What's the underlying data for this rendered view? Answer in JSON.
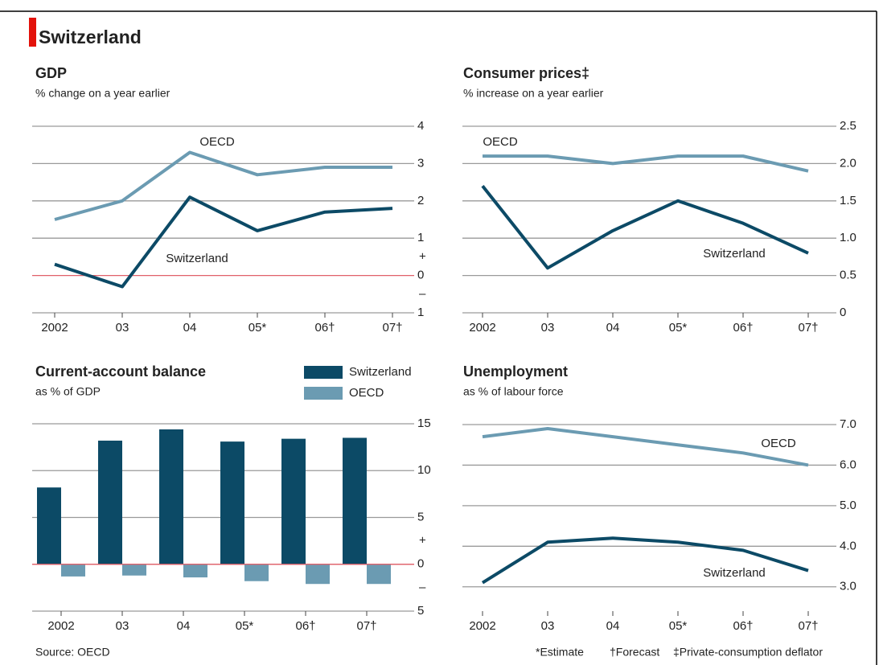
{
  "header": {
    "title": "Switzerland"
  },
  "footer": {
    "source": "Source: OECD",
    "notes": [
      "*Estimate",
      "†Forecast",
      "‡Private-consumption deflator"
    ]
  },
  "chart_data": [
    {
      "type": "line",
      "title": "GDP",
      "subtitle": "% change on a year earlier",
      "categories": [
        "2002",
        "03",
        "04",
        "05*",
        "06†",
        "07†"
      ],
      "series": [
        {
          "name": "OECD",
          "color": "#6b9bb2",
          "values": [
            1.5,
            2.0,
            3.3,
            2.7,
            2.9,
            2.9
          ]
        },
        {
          "name": "Switzerland",
          "color": "#0c4a66",
          "values": [
            0.3,
            -0.3,
            2.1,
            1.2,
            1.7,
            1.8
          ]
        }
      ],
      "ylim": [
        -1,
        4
      ],
      "yticks": [
        4,
        3,
        2,
        1,
        0,
        {
          "value": -1,
          "label": "1"
        }
      ],
      "sign_labels": [
        "+",
        "–"
      ],
      "grid": true,
      "zero_line": "#e0606a"
    },
    {
      "type": "line",
      "title": "Consumer prices‡",
      "subtitle": "% increase on a year earlier",
      "categories": [
        "2002",
        "03",
        "04",
        "05*",
        "06†",
        "07†"
      ],
      "series": [
        {
          "name": "OECD",
          "color": "#6b9bb2",
          "values": [
            2.1,
            2.1,
            2.0,
            2.1,
            2.1,
            1.9
          ]
        },
        {
          "name": "Switzerland",
          "color": "#0c4a66",
          "values": [
            1.7,
            0.6,
            1.1,
            1.5,
            1.2,
            0.8
          ]
        }
      ],
      "ylim": [
        0,
        2.5
      ],
      "yticks": [
        2.5,
        {
          "value": 2,
          "label": "2.0"
        },
        1.5,
        {
          "value": 1,
          "label": "1.0"
        },
        0.5,
        0
      ],
      "grid": true
    },
    {
      "type": "bar",
      "title": "Current-account balance",
      "subtitle": "as % of GDP",
      "categories": [
        "2002",
        "03",
        "04",
        "05*",
        "06†",
        "07†"
      ],
      "series": [
        {
          "name": "Switzerland",
          "color": "#0c4a66",
          "values": [
            8.2,
            13.2,
            14.4,
            13.1,
            13.4,
            13.5
          ]
        },
        {
          "name": "OECD",
          "color": "#6b9bb2",
          "values": [
            -1.3,
            -1.2,
            -1.4,
            -1.8,
            -2.1,
            -2.1
          ]
        }
      ],
      "ylim": [
        -5,
        15
      ],
      "yticks": [
        15,
        10,
        5,
        0,
        {
          "value": -5,
          "label": "5"
        }
      ],
      "sign_labels": [
        "+",
        "–"
      ],
      "grid": true,
      "zero_line": "#e0606a",
      "legend": "top"
    },
    {
      "type": "line",
      "title": "Unemployment",
      "subtitle": "as % of labour force",
      "categories": [
        "2002",
        "03",
        "04",
        "05*",
        "06†",
        "07†"
      ],
      "series": [
        {
          "name": "OECD",
          "color": "#6b9bb2",
          "values": [
            6.7,
            6.9,
            6.7,
            6.5,
            6.3,
            6.0
          ]
        },
        {
          "name": "Switzerland",
          "color": "#0c4a66",
          "values": [
            3.1,
            4.1,
            4.2,
            4.1,
            3.9,
            3.4
          ]
        }
      ],
      "ylim": [
        2.4,
        7
      ],
      "yticks": [
        {
          "value": 7,
          "label": "7.0"
        },
        {
          "value": 6,
          "label": "6.0"
        },
        {
          "value": 5,
          "label": "5.0"
        },
        {
          "value": 4,
          "label": "4.0"
        },
        {
          "value": 3,
          "label": "3.0"
        }
      ],
      "grid": true
    }
  ]
}
